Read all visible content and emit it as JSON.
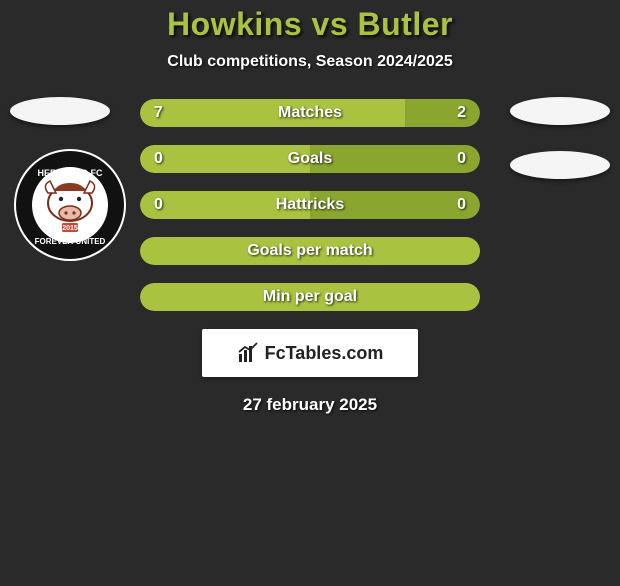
{
  "title": {
    "text": "Howkins vs Butler",
    "color": "#a9c23f",
    "fontsize": 32
  },
  "subtitle": {
    "text": "Club competitions, Season 2024/2025",
    "fontsize": 16
  },
  "colors": {
    "background": "#2a2a2a",
    "left_seg": "#a9c23f",
    "right_seg": "#8aa62e",
    "text": "#ffffff"
  },
  "stats": [
    {
      "label": "Matches",
      "left_val": "7",
      "right_val": "2",
      "left_pct": 78,
      "right_pct": 22
    },
    {
      "label": "Goals",
      "left_val": "0",
      "right_val": "0",
      "left_pct": 50,
      "right_pct": 50
    },
    {
      "label": "Hattricks",
      "left_val": "0",
      "right_val": "0",
      "left_pct": 50,
      "right_pct": 50
    },
    {
      "label": "Goals per match",
      "left_val": "",
      "right_val": "",
      "left_pct": 100,
      "right_pct": 0
    },
    {
      "label": "Min per goal",
      "left_val": "",
      "right_val": "",
      "left_pct": 100,
      "right_pct": 0
    }
  ],
  "brand": {
    "text": "FcTables.com"
  },
  "date": "27 february 2025",
  "club": {
    "top_text": "HEREFORD FC",
    "bottom_text": "FOREVER UNITED",
    "year": "2015"
  }
}
